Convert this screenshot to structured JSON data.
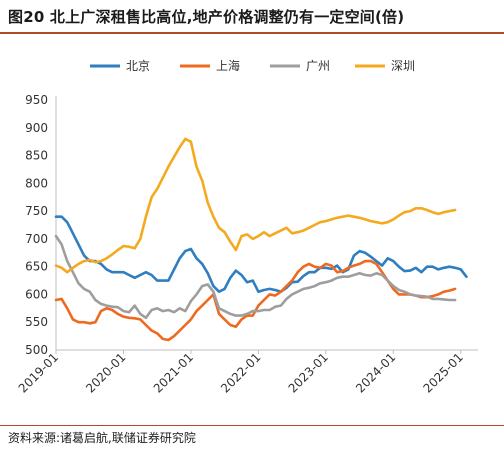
{
  "title": "图20 北上广深租售比高位,地产价格调整仍有一定空间(倍)",
  "source": "资料来源:诸葛启航,联储证券研究院",
  "colors": {
    "accent": "#b04a2a"
  },
  "chart_data": {
    "type": "line",
    "y_ticks": [
      "500",
      "550",
      "600",
      "650",
      "700",
      "750",
      "800",
      "850",
      "900",
      "950"
    ],
    "ylim": [
      500,
      950
    ],
    "x_ticks": [
      "2019-01",
      "2020-01",
      "2021-01",
      "2022-01",
      "2023-01",
      "2024-01",
      "2025-01"
    ],
    "x_range_months": [
      0,
      74
    ],
    "legend_position": "top",
    "grid": false,
    "series": [
      {
        "name": "北京",
        "color": "#2f7ec1",
        "points": [
          [
            0,
            740
          ],
          [
            1,
            740
          ],
          [
            2,
            730
          ],
          [
            3,
            710
          ],
          [
            4,
            690
          ],
          [
            5,
            670
          ],
          [
            6,
            660
          ],
          [
            7,
            660
          ],
          [
            8,
            655
          ],
          [
            9,
            645
          ],
          [
            10,
            640
          ],
          [
            11,
            640
          ],
          [
            12,
            640
          ],
          [
            13,
            635
          ],
          [
            14,
            630
          ],
          [
            15,
            635
          ],
          [
            16,
            640
          ],
          [
            17,
            635
          ],
          [
            18,
            625
          ],
          [
            19,
            625
          ],
          [
            20,
            625
          ],
          [
            21,
            645
          ],
          [
            22,
            665
          ],
          [
            23,
            678
          ],
          [
            24,
            682
          ],
          [
            25,
            665
          ],
          [
            26,
            655
          ],
          [
            27,
            638
          ],
          [
            28,
            615
          ],
          [
            29,
            605
          ],
          [
            30,
            610
          ],
          [
            31,
            630
          ],
          [
            32,
            643
          ],
          [
            33,
            635
          ],
          [
            34,
            622
          ],
          [
            35,
            625
          ],
          [
            36,
            605
          ],
          [
            37,
            608
          ],
          [
            38,
            610
          ],
          [
            39,
            608
          ],
          [
            40,
            605
          ],
          [
            41,
            612
          ],
          [
            42,
            622
          ],
          [
            43,
            623
          ],
          [
            44,
            633
          ],
          [
            45,
            640
          ],
          [
            46,
            640
          ],
          [
            47,
            648
          ],
          [
            48,
            648
          ],
          [
            49,
            646
          ],
          [
            50,
            652
          ],
          [
            51,
            640
          ],
          [
            52,
            645
          ],
          [
            53,
            670
          ],
          [
            54,
            678
          ],
          [
            55,
            675
          ],
          [
            56,
            668
          ],
          [
            57,
            660
          ],
          [
            58,
            652
          ],
          [
            59,
            665
          ],
          [
            60,
            660
          ],
          [
            61,
            650
          ],
          [
            62,
            642
          ],
          [
            63,
            643
          ],
          [
            64,
            648
          ],
          [
            65,
            640
          ],
          [
            66,
            650
          ],
          [
            67,
            650
          ],
          [
            68,
            645
          ],
          [
            69,
            648
          ],
          [
            70,
            650
          ],
          [
            71,
            648
          ],
          [
            72,
            645
          ],
          [
            73,
            632
          ]
        ]
      },
      {
        "name": "上海",
        "color": "#ee6a1f",
        "points": [
          [
            0,
            590
          ],
          [
            1,
            592
          ],
          [
            2,
            575
          ],
          [
            3,
            555
          ],
          [
            4,
            550
          ],
          [
            5,
            550
          ],
          [
            6,
            548
          ],
          [
            7,
            550
          ],
          [
            8,
            570
          ],
          [
            9,
            575
          ],
          [
            10,
            572
          ],
          [
            11,
            565
          ],
          [
            12,
            560
          ],
          [
            13,
            558
          ],
          [
            14,
            557
          ],
          [
            15,
            555
          ],
          [
            16,
            545
          ],
          [
            17,
            535
          ],
          [
            18,
            530
          ],
          [
            19,
            520
          ],
          [
            20,
            518
          ],
          [
            21,
            525
          ],
          [
            22,
            535
          ],
          [
            23,
            545
          ],
          [
            24,
            555
          ],
          [
            25,
            570
          ],
          [
            26,
            580
          ],
          [
            27,
            590
          ],
          [
            28,
            600
          ],
          [
            29,
            565
          ],
          [
            30,
            555
          ],
          [
            31,
            545
          ],
          [
            32,
            542
          ],
          [
            33,
            555
          ],
          [
            34,
            562
          ],
          [
            35,
            562
          ],
          [
            36,
            580
          ],
          [
            37,
            590
          ],
          [
            38,
            600
          ],
          [
            39,
            598
          ],
          [
            40,
            605
          ],
          [
            41,
            615
          ],
          [
            42,
            625
          ],
          [
            43,
            640
          ],
          [
            44,
            650
          ],
          [
            45,
            655
          ],
          [
            46,
            650
          ],
          [
            47,
            648
          ],
          [
            48,
            655
          ],
          [
            49,
            652
          ],
          [
            50,
            640
          ],
          [
            51,
            642
          ],
          [
            52,
            648
          ],
          [
            53,
            652
          ],
          [
            54,
            655
          ],
          [
            55,
            660
          ],
          [
            56,
            660
          ],
          [
            57,
            655
          ],
          [
            58,
            640
          ],
          [
            59,
            625
          ],
          [
            60,
            610
          ],
          [
            61,
            600
          ],
          [
            62,
            600
          ],
          [
            63,
            600
          ],
          [
            64,
            598
          ],
          [
            65,
            595
          ],
          [
            66,
            595
          ],
          [
            67,
            597
          ],
          [
            68,
            600
          ],
          [
            69,
            605
          ],
          [
            70,
            607
          ],
          [
            71,
            610
          ]
        ]
      },
      {
        "name": "广州",
        "color": "#9e9e9e",
        "points": [
          [
            0,
            705
          ],
          [
            1,
            690
          ],
          [
            2,
            660
          ],
          [
            3,
            640
          ],
          [
            4,
            620
          ],
          [
            5,
            610
          ],
          [
            6,
            605
          ],
          [
            7,
            590
          ],
          [
            8,
            583
          ],
          [
            9,
            580
          ],
          [
            10,
            578
          ],
          [
            11,
            577
          ],
          [
            12,
            570
          ],
          [
            13,
            568
          ],
          [
            14,
            580
          ],
          [
            15,
            565
          ],
          [
            16,
            558
          ],
          [
            17,
            572
          ],
          [
            18,
            575
          ],
          [
            19,
            570
          ],
          [
            20,
            572
          ],
          [
            21,
            568
          ],
          [
            22,
            575
          ],
          [
            23,
            570
          ],
          [
            24,
            588
          ],
          [
            25,
            600
          ],
          [
            26,
            615
          ],
          [
            27,
            618
          ],
          [
            28,
            605
          ],
          [
            29,
            575
          ],
          [
            30,
            570
          ],
          [
            31,
            565
          ],
          [
            32,
            562
          ],
          [
            33,
            562
          ],
          [
            34,
            565
          ],
          [
            35,
            570
          ],
          [
            36,
            570
          ],
          [
            37,
            572
          ],
          [
            38,
            572
          ],
          [
            39,
            578
          ],
          [
            40,
            580
          ],
          [
            41,
            592
          ],
          [
            42,
            600
          ],
          [
            43,
            605
          ],
          [
            44,
            610
          ],
          [
            45,
            612
          ],
          [
            46,
            615
          ],
          [
            47,
            620
          ],
          [
            48,
            622
          ],
          [
            49,
            625
          ],
          [
            50,
            630
          ],
          [
            51,
            632
          ],
          [
            52,
            632
          ],
          [
            53,
            635
          ],
          [
            54,
            638
          ],
          [
            55,
            635
          ],
          [
            56,
            634
          ],
          [
            57,
            638
          ],
          [
            58,
            635
          ],
          [
            59,
            625
          ],
          [
            60,
            615
          ],
          [
            61,
            608
          ],
          [
            62,
            605
          ],
          [
            63,
            600
          ],
          [
            64,
            598
          ],
          [
            65,
            597
          ],
          [
            66,
            596
          ],
          [
            67,
            592
          ],
          [
            68,
            592
          ],
          [
            69,
            591
          ],
          [
            70,
            590
          ],
          [
            71,
            590
          ]
        ]
      },
      {
        "name": "深圳",
        "color": "#f5a91e",
        "points": [
          [
            0,
            652
          ],
          [
            1,
            648
          ],
          [
            2,
            640
          ],
          [
            3,
            648
          ],
          [
            4,
            655
          ],
          [
            5,
            660
          ],
          [
            6,
            662
          ],
          [
            7,
            658
          ],
          [
            8,
            660
          ],
          [
            9,
            665
          ],
          [
            10,
            672
          ],
          [
            11,
            680
          ],
          [
            12,
            687
          ],
          [
            13,
            686
          ],
          [
            14,
            683
          ],
          [
            15,
            700
          ],
          [
            16,
            740
          ],
          [
            17,
            775
          ],
          [
            18,
            790
          ],
          [
            19,
            810
          ],
          [
            20,
            830
          ],
          [
            21,
            848
          ],
          [
            22,
            865
          ],
          [
            23,
            880
          ],
          [
            24,
            875
          ],
          [
            25,
            830
          ],
          [
            26,
            805
          ],
          [
            27,
            765
          ],
          [
            28,
            740
          ],
          [
            29,
            720
          ],
          [
            30,
            712
          ],
          [
            31,
            695
          ],
          [
            32,
            680
          ],
          [
            33,
            705
          ],
          [
            34,
            708
          ],
          [
            35,
            700
          ],
          [
            36,
            705
          ],
          [
            37,
            712
          ],
          [
            38,
            705
          ],
          [
            39,
            710
          ],
          [
            40,
            715
          ],
          [
            41,
            720
          ],
          [
            42,
            710
          ],
          [
            43,
            712
          ],
          [
            44,
            715
          ],
          [
            45,
            720
          ],
          [
            46,
            725
          ],
          [
            47,
            730
          ],
          [
            48,
            732
          ],
          [
            49,
            735
          ],
          [
            50,
            738
          ],
          [
            51,
            740
          ],
          [
            52,
            742
          ],
          [
            53,
            740
          ],
          [
            54,
            738
          ],
          [
            55,
            735
          ],
          [
            56,
            732
          ],
          [
            57,
            730
          ],
          [
            58,
            728
          ],
          [
            59,
            730
          ],
          [
            60,
            735
          ],
          [
            61,
            742
          ],
          [
            62,
            748
          ],
          [
            63,
            750
          ],
          [
            64,
            755
          ],
          [
            65,
            755
          ],
          [
            66,
            752
          ],
          [
            67,
            748
          ],
          [
            68,
            745
          ],
          [
            69,
            748
          ],
          [
            70,
            750
          ],
          [
            71,
            752
          ]
        ]
      }
    ]
  }
}
